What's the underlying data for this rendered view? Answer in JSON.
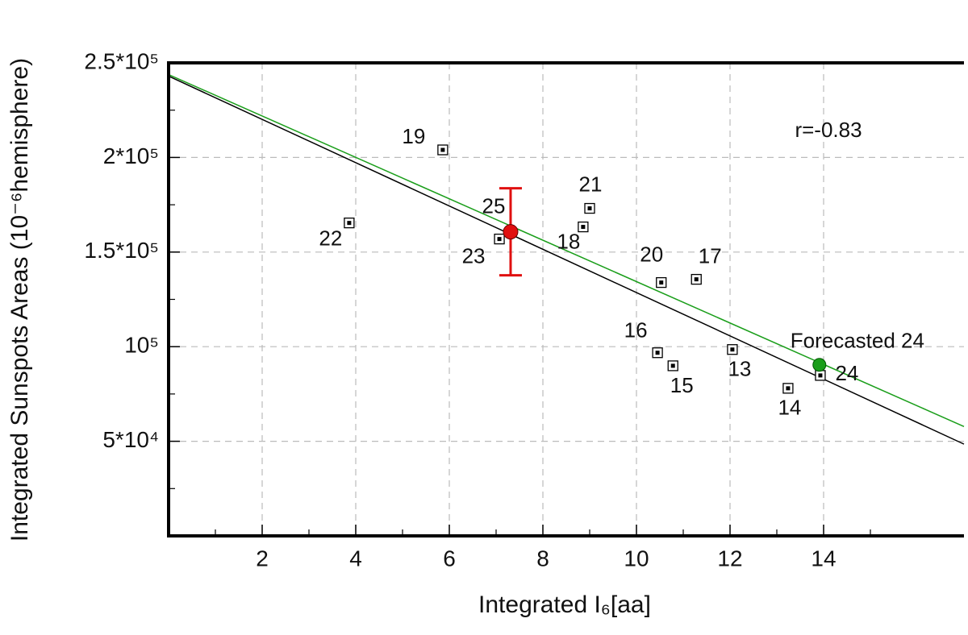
{
  "chart_data": {
    "type": "scatter",
    "x_label": "Integrated I₆[aa]",
    "y_label": "Integrated Sunspots Areas (10⁻⁶hemisphere)",
    "xlim": [
      0,
      17
    ],
    "ylim": [
      0,
      250000
    ],
    "xticks": [
      2,
      4,
      6,
      8,
      10,
      12,
      14
    ],
    "yticks": [
      {
        "value": 50000,
        "label": "5*10⁴"
      },
      {
        "value": 100000,
        "label": "10⁵"
      },
      {
        "value": 150000,
        "label": "1.5*10⁵"
      },
      {
        "value": 200000,
        "label": "2*10⁵"
      },
      {
        "value": 250000,
        "label": "2.5*10⁵"
      }
    ],
    "grid": true,
    "points": {
      "color": "#000000",
      "labels": [
        "19",
        "22",
        "23",
        "21",
        "18",
        "20",
        "17",
        "16",
        "15",
        "13",
        "14",
        "24"
      ],
      "x": [
        5.86,
        3.86,
        7.07,
        9.0,
        8.86,
        10.53,
        11.28,
        10.45,
        10.78,
        12.05,
        13.24,
        13.93
      ],
      "y": [
        204000,
        165400,
        156900,
        173100,
        163300,
        133900,
        135600,
        96800,
        89900,
        98500,
        78000,
        84800
      ]
    },
    "forecast": {
      "label": "Forecasted 24",
      "x": 13.91,
      "y": 90400,
      "color": "#1a9e1a"
    },
    "prediction": {
      "label": "25",
      "x": 7.31,
      "y": 160700,
      "error": 23000,
      "color": "#e01010"
    },
    "fits": [
      {
        "color": "#000000",
        "x": [
          0,
          17
        ],
        "y": [
          243000,
          48500
        ]
      },
      {
        "color": "#1a9e1a",
        "x": [
          0,
          17
        ],
        "y": [
          243800,
          57800
        ]
      }
    ],
    "annotation": {
      "text": "r=-0.83",
      "color": "#d01010"
    }
  }
}
